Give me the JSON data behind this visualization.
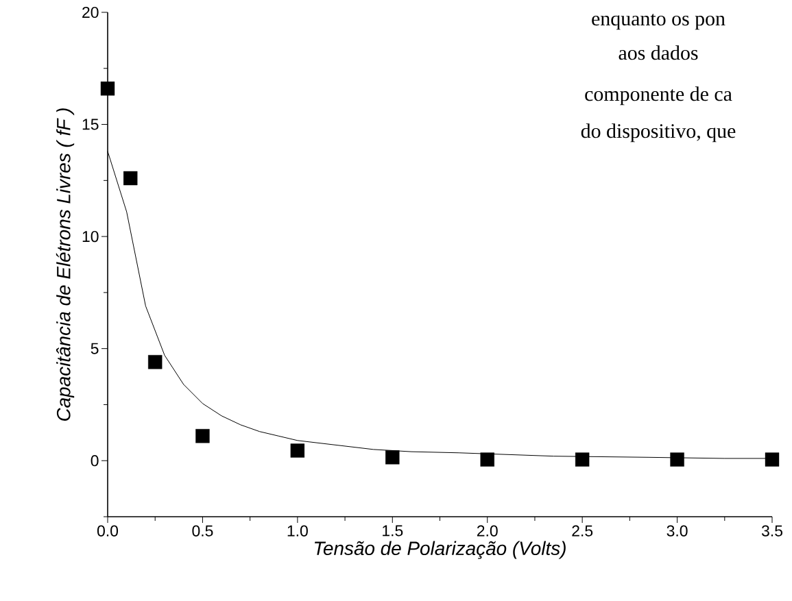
{
  "chart_data": {
    "type": "scatter",
    "xlabel": "Tensão de Polarização (Volts)",
    "ylabel": "Capacitância de Elétrons Livres ( fF )",
    "annotations": [
      "enquanto os pon",
      "aos dados",
      "componente de ca",
      "do dispositivo, que"
    ],
    "xlim": [
      0,
      3.5
    ],
    "ylim": [
      -2.5,
      20
    ],
    "xticks": [
      {
        "value": 0,
        "label": "0.0"
      },
      {
        "value": 0.25,
        "label": null
      },
      {
        "value": 0.5,
        "label": "0.5"
      },
      {
        "value": 0.75,
        "label": null
      },
      {
        "value": 1,
        "label": "1.0"
      },
      {
        "value": 1.25,
        "label": null
      },
      {
        "value": 1.5,
        "label": "1.5"
      },
      {
        "value": 1.75,
        "label": null
      },
      {
        "value": 2,
        "label": "2.0"
      },
      {
        "value": 2.25,
        "label": null
      },
      {
        "value": 2.5,
        "label": "2.5"
      },
      {
        "value": 2.75,
        "label": null
      },
      {
        "value": 3,
        "label": "3.0"
      },
      {
        "value": 3.25,
        "label": null
      },
      {
        "value": 3.5,
        "label": "3.5"
      }
    ],
    "yticks": [
      {
        "value": -2.5,
        "label": null
      },
      0,
      {
        "value": 2.5,
        "label": null
      },
      5,
      {
        "value": 7.5,
        "label": null
      },
      10,
      {
        "value": 12.5,
        "label": null
      },
      15,
      {
        "value": 17.5,
        "label": null
      },
      20
    ],
    "series": [
      {
        "marker": "square",
        "color": "#000000",
        "x": [
          0,
          0.12,
          0.25,
          0.5,
          1.0,
          1.5,
          2.0,
          2.5,
          3.0,
          3.5
        ],
        "values": [
          16.6,
          12.6,
          4.4,
          1.1,
          0.45,
          0.15,
          0.05,
          0.05,
          0.05,
          0.05
        ]
      },
      {
        "type": "line",
        "marker": "none",
        "line_style": "solid",
        "color": "#000000",
        "x": [
          0,
          0.1,
          0.2,
          0.3,
          0.4,
          0.5,
          0.6,
          0.7,
          0.8,
          0.9,
          1.0,
          1.4,
          1.6,
          1.85,
          2.35,
          2.85,
          3.25,
          3.5
        ],
        "values": [
          13.8,
          11.1,
          6.9,
          4.7,
          3.4,
          2.55,
          2.0,
          1.6,
          1.3,
          1.1,
          0.9,
          0.5,
          0.4,
          0.35,
          0.2,
          0.15,
          0.1,
          0.1
        ]
      }
    ]
  }
}
